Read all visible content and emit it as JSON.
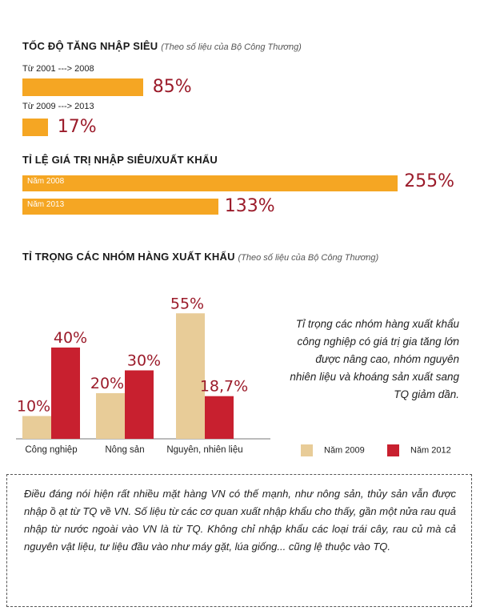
{
  "section1": {
    "title": "TỐC ĐỘ TĂNG NHẬP SIÊU",
    "note": "(Theo số liệu của Bộ Công Thương)",
    "rows": [
      {
        "period": "Từ 2001 ---> 2008",
        "value": 85,
        "label": "85%"
      },
      {
        "period": "Từ 2009 ---> 2013",
        "value": 17,
        "label": "17%"
      }
    ]
  },
  "section2": {
    "title": "TỈ LỆ GIÁ TRỊ NHẬP SIÊU/XUẤT KHẨU",
    "rows": [
      {
        "year": "Năm 2008",
        "value": 255,
        "label": "255%"
      },
      {
        "year": "Năm 2013",
        "value": 133,
        "label": "133%"
      }
    ]
  },
  "section3": {
    "title": "TỈ TRỌNG CÁC NHÓM HÀNG XUẤT KHẨU",
    "note": "(Theo số liệu của Bộ Công Thương)",
    "side_text": "Tỉ trọng các nhóm hàng xuất khẩu công nghiệp có giá trị gia tăng lớn được nâng cao, nhóm nguyên nhiên liệu và khoáng sản xuất sang TQ giảm dần.",
    "legend": [
      "Năm 2009",
      "Năm 2012"
    ]
  },
  "colors": {
    "orange": "#f5a623",
    "red_text": "#9b1b2a",
    "series_2009": "#e8cc98",
    "series_2012": "#c8202f"
  },
  "chart_data": [
    {
      "type": "bar",
      "orientation": "horizontal",
      "title": "TỐC ĐỘ TĂNG NHẬP SIÊU",
      "categories": [
        "Từ 2001 ---> 2008",
        "Từ 2009 ---> 2013"
      ],
      "values": [
        85,
        17
      ],
      "unit": "%"
    },
    {
      "type": "bar",
      "orientation": "horizontal",
      "title": "TỈ LỆ GIÁ TRỊ NHẬP SIÊU/XUẤT KHẨU",
      "categories": [
        "Năm 2008",
        "Năm 2013"
      ],
      "values": [
        255,
        133
      ],
      "unit": "%"
    },
    {
      "type": "bar",
      "title": "TỈ TRỌNG CÁC NHÓM HÀNG XUẤT KHẨU",
      "categories": [
        "Công nghiệp",
        "Nông sản",
        "Nguyên, nhiên liệu"
      ],
      "series": [
        {
          "name": "Năm 2009",
          "values": [
            10,
            20,
            55
          ],
          "labels": [
            "10%",
            "20%",
            "55%"
          ]
        },
        {
          "name": "Năm 2012",
          "values": [
            40,
            30,
            18.7
          ],
          "labels": [
            "40%",
            "30%",
            "18,7%"
          ]
        }
      ],
      "ylim": [
        0,
        60
      ]
    }
  ],
  "bottom_text": "Điều đáng nói hiện rất nhiều mặt hàng VN có thế mạnh, như nông sản, thủy sản vẫn được nhập ồ ạt từ TQ về VN. Số liệu từ các cơ quan xuất nhập khẩu cho thấy, gần một nửa rau quả nhập từ nước ngoài vào VN là từ TQ. Không chỉ nhập khẩu các loại trái cây, rau củ mà cả nguyên vật liệu, tư liệu đầu vào như máy gặt, lúa giống... cũng lệ thuộc vào TQ."
}
